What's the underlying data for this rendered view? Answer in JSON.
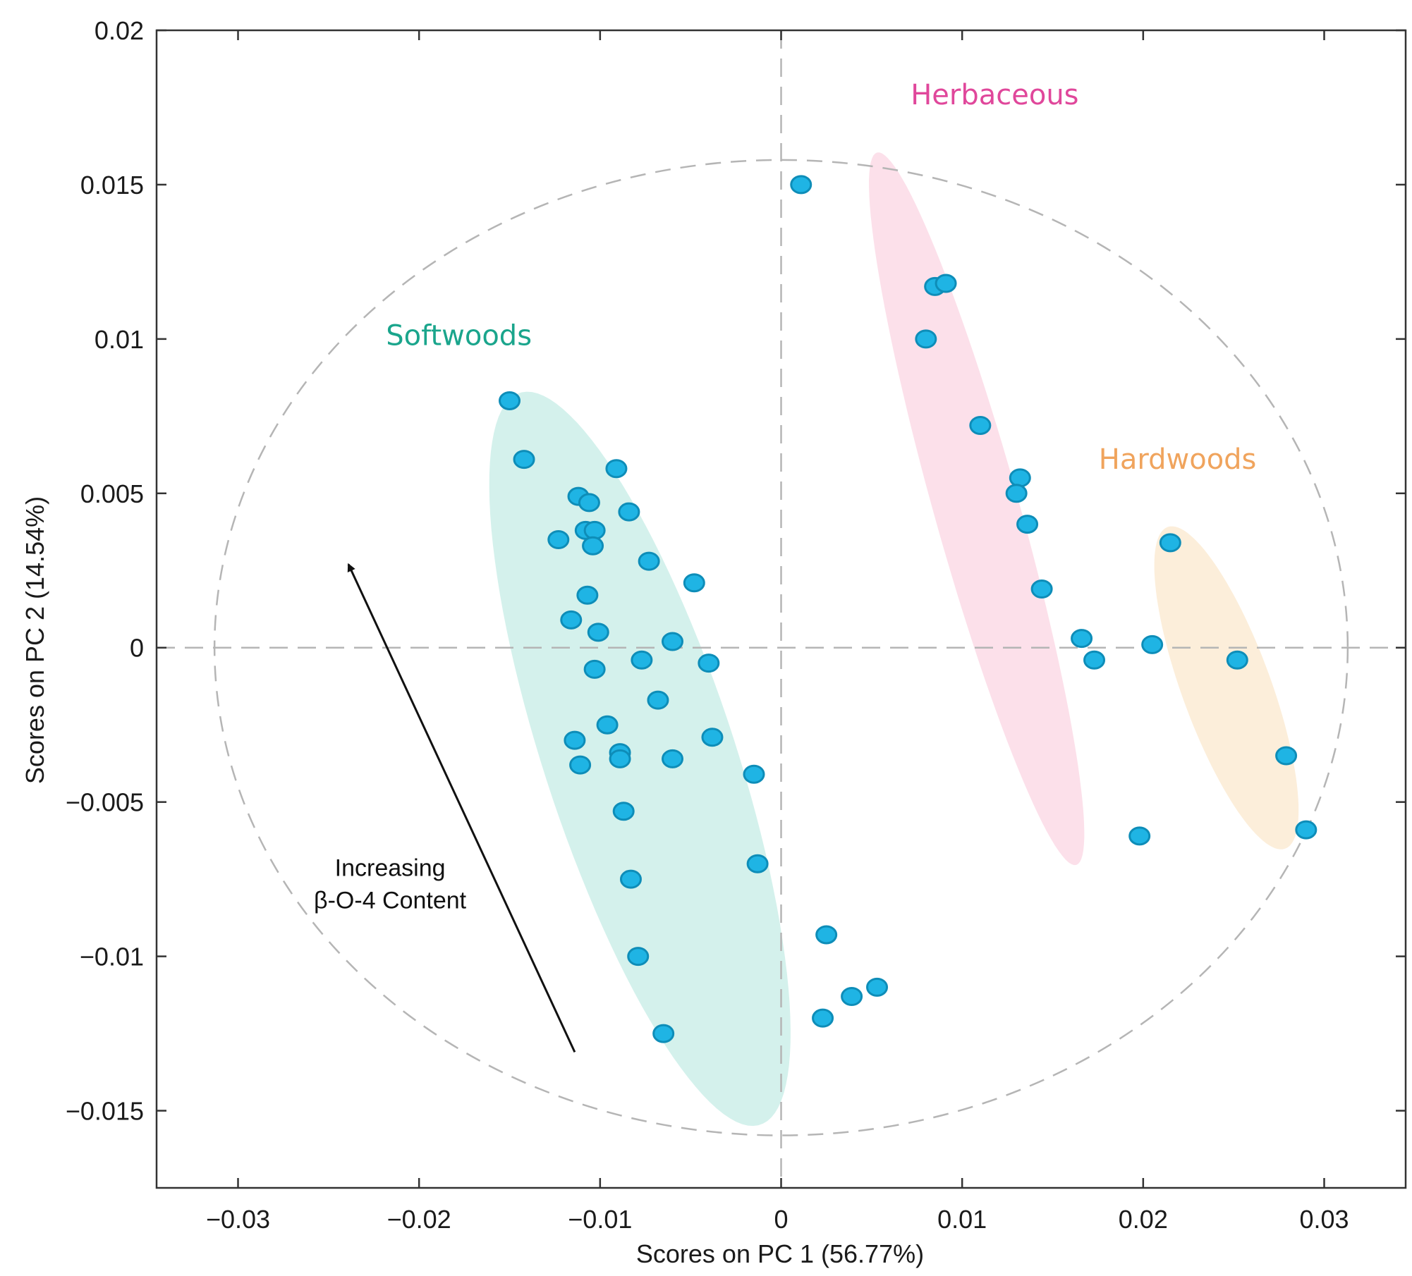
{
  "chart_data": {
    "type": "scatter",
    "title": "",
    "xlabel": "Scores on PC 1 (56.77%)",
    "ylabel": "Scores on PC 2 (14.54%)",
    "xlim": [
      -0.0345,
      0.0345
    ],
    "ylim": [
      -0.0175,
      0.02
    ],
    "x_ticks": [
      -0.03,
      -0.02,
      -0.01,
      0,
      0.01,
      0.02,
      0.03
    ],
    "x_tick_labels": [
      "−0.03",
      "−0.02",
      "−0.01",
      "0",
      "0.01",
      "0.02",
      "0.03"
    ],
    "y_ticks": [
      0.02,
      0.015,
      0.01,
      0.005,
      0,
      -0.005,
      -0.01,
      -0.015
    ],
    "y_tick_labels": [
      "0.02",
      "0.015",
      "0.01",
      "0.005",
      "0",
      "−0.005",
      "−0.01",
      "−0.015"
    ],
    "reference_lines": {
      "x": 0,
      "y": 0,
      "style": "dashed"
    },
    "confidence_ellipse": {
      "center": [
        0,
        0
      ],
      "radius_x": 0.0313,
      "radius_y": 0.0158,
      "style": "dashed"
    },
    "colors": {
      "point": "#1fb4e4",
      "point_edge": "#0e8db8",
      "softwoods_fill": "#cdeee9",
      "herbaceous_fill": "#fbdae6",
      "hardwoods_fill": "#fcebd4",
      "softwoods_label": "#1aa58c",
      "herbaceous_label": "#e0479b",
      "hardwoods_label": "#f0a45d",
      "guide": "#b5b5b5",
      "axis": "#333333"
    },
    "groups": [
      {
        "name": "Softwoods",
        "label_at": [
          -0.0178,
          0.0098
        ],
        "ellipse": {
          "center": [
            -0.0078,
            -0.0036
          ],
          "semi_major": 0.0137,
          "semi_minor": 0.0048,
          "angle_deg": -58
        },
        "points": [
          [
            -0.015,
            0.008
          ],
          [
            -0.0142,
            0.0061
          ],
          [
            -0.0091,
            0.0058
          ],
          [
            -0.0112,
            0.0049
          ],
          [
            -0.0106,
            0.0047
          ],
          [
            -0.0084,
            0.0044
          ],
          [
            -0.0108,
            0.0038
          ],
          [
            -0.0103,
            0.0038
          ],
          [
            -0.0123,
            0.0035
          ],
          [
            -0.0104,
            0.0033
          ],
          [
            -0.0073,
            0.0028
          ],
          [
            -0.0048,
            0.0021
          ],
          [
            -0.0107,
            0.0017
          ],
          [
            -0.0116,
            0.0009
          ],
          [
            -0.0101,
            0.0005
          ],
          [
            -0.006,
            0.0002
          ],
          [
            -0.0077,
            -0.0004
          ],
          [
            -0.004,
            -0.0005
          ],
          [
            -0.0103,
            -0.0007
          ],
          [
            -0.0068,
            -0.0017
          ],
          [
            -0.0096,
            -0.0025
          ],
          [
            -0.0038,
            -0.0029
          ],
          [
            -0.0114,
            -0.003
          ],
          [
            -0.0089,
            -0.0034
          ],
          [
            -0.0089,
            -0.0036
          ],
          [
            -0.006,
            -0.0036
          ],
          [
            -0.0111,
            -0.0038
          ],
          [
            -0.0015,
            -0.0041
          ],
          [
            -0.0087,
            -0.0053
          ],
          [
            -0.0013,
            -0.007
          ],
          [
            -0.0083,
            -0.0075
          ],
          [
            0.0025,
            -0.0093
          ],
          [
            -0.0079,
            -0.01
          ],
          [
            0.0053,
            -0.011
          ],
          [
            0.0039,
            -0.0113
          ],
          [
            0.0023,
            -0.012
          ],
          [
            -0.0065,
            -0.0125
          ]
        ]
      },
      {
        "name": "Herbaceous",
        "label_at": [
          0.0118,
          0.0176
        ],
        "ellipse": {
          "center": [
            0.0108,
            0.0045
          ],
          "semi_major": 0.0128,
          "semi_minor": 0.0022,
          "angle_deg": -64
        },
        "points": [
          [
            0.0011,
            0.015
          ],
          [
            0.0085,
            0.0117
          ],
          [
            0.0091,
            0.0118
          ],
          [
            0.008,
            0.01
          ],
          [
            0.011,
            0.0072
          ],
          [
            0.0132,
            0.0055
          ],
          [
            0.013,
            0.005
          ],
          [
            0.0136,
            0.004
          ],
          [
            0.0144,
            0.0019
          ],
          [
            0.0166,
            0.0003
          ],
          [
            0.0173,
            -0.0004
          ],
          [
            0.0198,
            -0.0061
          ]
        ]
      },
      {
        "name": "Hardwoods",
        "label_at": [
          0.0219,
          0.0058
        ],
        "ellipse": {
          "center": [
            0.0246,
            -0.0013
          ],
          "semi_major": 0.0062,
          "semi_minor": 0.0022,
          "angle_deg": -55
        },
        "points": [
          [
            0.0215,
            0.0034
          ],
          [
            0.0205,
            0.0001
          ],
          [
            0.0252,
            -0.0004
          ],
          [
            0.0279,
            -0.0035
          ],
          [
            0.029,
            -0.0059
          ]
        ]
      }
    ],
    "annotation": {
      "lines": [
        "Increasing",
        "β-O-4 Content"
      ],
      "text_at": [
        -0.0216,
        -0.0079
      ],
      "arrow_from": [
        -0.0114,
        -0.0131
      ],
      "arrow_to": [
        -0.0239,
        0.0027
      ]
    }
  }
}
